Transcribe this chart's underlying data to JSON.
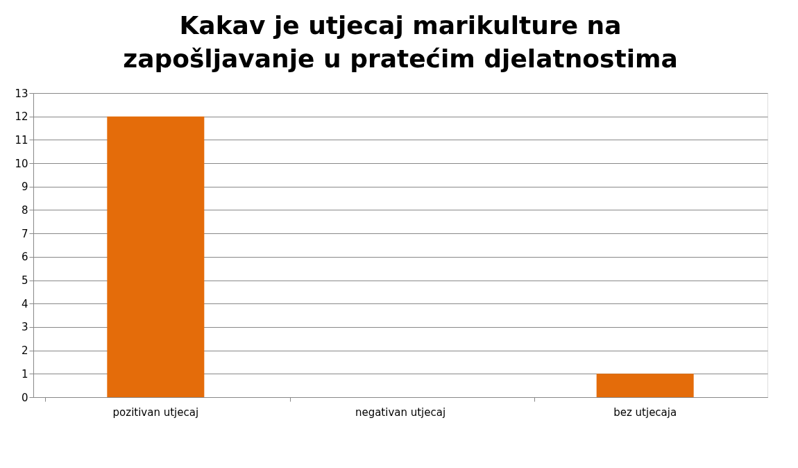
{
  "chart_data": {
    "type": "bar",
    "title": "Kakav je utjecaj marikulture na zapošljavanje u pratećim djelatnostima",
    "categories": [
      "pozitivan utjecaj",
      "negativan utjecaj",
      "bez utjecaja"
    ],
    "values": [
      12,
      0,
      1
    ],
    "color": "#e46c0a",
    "ylim": [
      0,
      13
    ],
    "yticks": [
      0,
      1,
      2,
      3,
      4,
      5,
      6,
      7,
      8,
      9,
      10,
      11,
      12,
      13
    ],
    "grid": "y",
    "legend": false
  }
}
